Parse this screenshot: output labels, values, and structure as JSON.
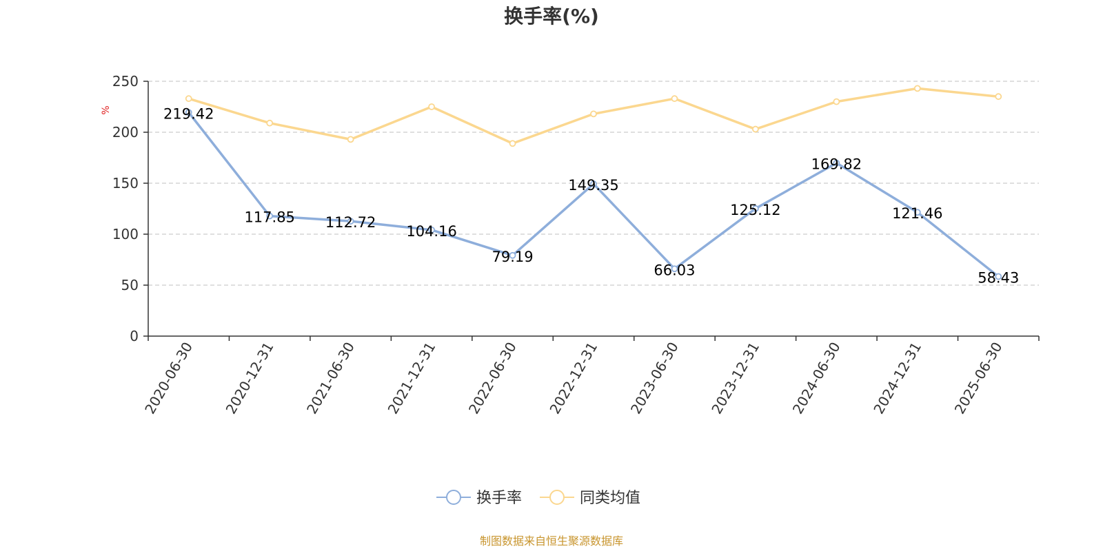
{
  "chart_data": {
    "type": "line",
    "title": "换手率(%)",
    "ylabel": "%",
    "xlabel": "",
    "categories": [
      "2020-06-30",
      "2020-12-31",
      "2021-06-30",
      "2021-12-31",
      "2022-06-30",
      "2022-12-31",
      "2023-06-30",
      "2023-12-31",
      "2024-06-30",
      "2024-12-31",
      "2025-06-30"
    ],
    "ylim": [
      0,
      250
    ],
    "yticks": [
      0,
      50,
      100,
      150,
      200,
      250
    ],
    "grid": true,
    "legend_position": "bottom-center",
    "series": [
      {
        "name": "换手率",
        "color": "#8eaedb",
        "values": [
          219.42,
          117.85,
          112.72,
          104.16,
          79.19,
          149.35,
          66.03,
          125.12,
          169.82,
          121.46,
          58.43
        ],
        "labels": [
          "219.42",
          "117.85",
          "112.72",
          "104.16",
          "79.19",
          "149.35",
          "66.03",
          "125.12",
          "169.82",
          "121.46",
          "58.43"
        ],
        "show_labels": true
      },
      {
        "name": "同类均值",
        "color": "#fbd78f",
        "values": [
          233,
          209,
          193,
          225,
          189,
          218,
          233,
          203,
          230,
          243,
          235
        ],
        "show_labels": false
      }
    ]
  },
  "unit_color": "#e02020",
  "footer": {
    "source": "制图数据来自恒生聚源数据库",
    "color": "#c8952e"
  }
}
